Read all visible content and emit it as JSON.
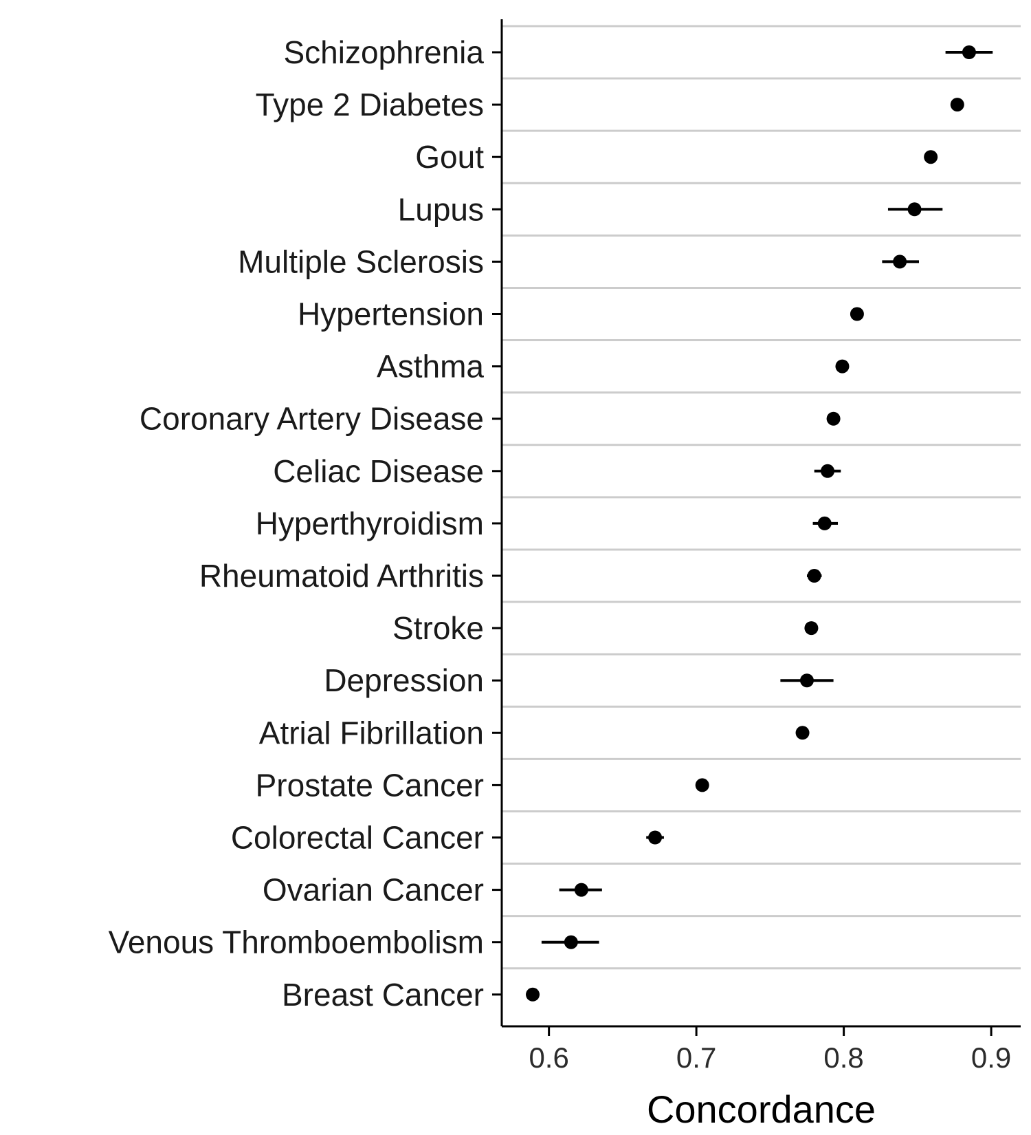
{
  "chart_data": {
    "type": "scatter",
    "xlabel": "Concordance",
    "ylabel": "",
    "xlim": [
      0.568,
      0.92
    ],
    "xticks": [
      0.6,
      0.7,
      0.8,
      0.9
    ],
    "xtick_labels": [
      "0.6",
      "0.7",
      "0.8",
      "0.9"
    ],
    "grid": "horizontal separators between rows",
    "legend": "none",
    "categories": [
      "Schizophrenia",
      "Type 2 Diabetes",
      "Gout",
      "Lupus",
      "Multiple Sclerosis",
      "Hypertension",
      "Asthma",
      "Coronary Artery Disease",
      "Celiac Disease",
      "Hyperthyroidism",
      "Rheumatoid Arthritis",
      "Stroke",
      "Depression",
      "Atrial Fibrillation",
      "Prostate Cancer",
      "Colorectal Cancer",
      "Ovarian Cancer",
      "Venous Thromboembolism",
      "Breast Cancer"
    ],
    "values": [
      0.885,
      0.877,
      0.859,
      0.848,
      0.838,
      0.809,
      0.799,
      0.793,
      0.789,
      0.787,
      0.78,
      0.778,
      0.775,
      0.772,
      0.704,
      0.672,
      0.622,
      0.615,
      0.589
    ],
    "lower": [
      0.869,
      0.877,
      0.859,
      0.83,
      0.826,
      0.809,
      0.799,
      0.793,
      0.78,
      0.779,
      0.775,
      0.778,
      0.757,
      0.772,
      0.704,
      0.666,
      0.607,
      0.595,
      0.585
    ],
    "upper": [
      0.901,
      0.877,
      0.859,
      0.867,
      0.851,
      0.809,
      0.799,
      0.793,
      0.798,
      0.796,
      0.785,
      0.778,
      0.793,
      0.772,
      0.704,
      0.678,
      0.636,
      0.634,
      0.593
    ]
  }
}
